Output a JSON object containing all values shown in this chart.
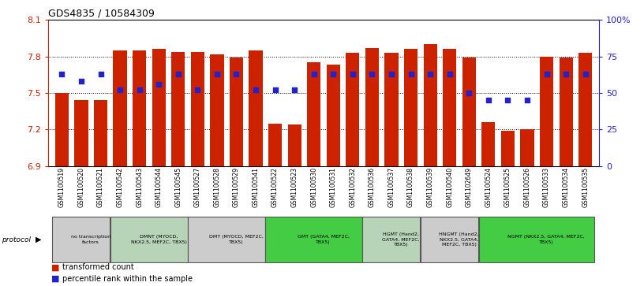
{
  "title": "GDS4835 / 10584309",
  "samples": [
    "GSM1100519",
    "GSM1100520",
    "GSM1100521",
    "GSM1100542",
    "GSM1100543",
    "GSM1100544",
    "GSM1100545",
    "GSM1100527",
    "GSM1100528",
    "GSM1100529",
    "GSM1100541",
    "GSM1100522",
    "GSM1100523",
    "GSM1100530",
    "GSM1100531",
    "GSM1100532",
    "GSM1100536",
    "GSM1100537",
    "GSM1100538",
    "GSM1100539",
    "GSM1100540",
    "GSM1102649",
    "GSM1100524",
    "GSM1100525",
    "GSM1100526",
    "GSM1100533",
    "GSM1100534",
    "GSM1100535"
  ],
  "bar_values": [
    7.5,
    7.44,
    7.44,
    7.85,
    7.85,
    7.86,
    7.84,
    7.84,
    7.82,
    7.79,
    7.85,
    7.25,
    7.24,
    7.75,
    7.73,
    7.83,
    7.87,
    7.83,
    7.86,
    7.9,
    7.86,
    7.79,
    7.26,
    7.19,
    7.2,
    7.8,
    7.79,
    7.83
  ],
  "dot_values_pct": [
    63,
    58,
    63,
    52,
    52,
    56,
    63,
    52,
    63,
    63,
    52,
    52,
    52,
    63,
    63,
    63,
    63,
    63,
    63,
    63,
    63,
    50,
    45,
    45,
    45,
    63,
    63,
    63
  ],
  "protocols": [
    {
      "label": "no transcription\nfactors",
      "color": "#cccccc",
      "start": 0,
      "end": 3
    },
    {
      "label": "DMNT (MYOCD,\nNKX2.5, MEF2C, TBX5)",
      "color": "#b8d4b8",
      "start": 3,
      "end": 7
    },
    {
      "label": "DMT (MYOCD, MEF2C,\nTBX5)",
      "color": "#cccccc",
      "start": 7,
      "end": 11
    },
    {
      "label": "GMT (GATA4, MEF2C,\nTBX5)",
      "color": "#44cc44",
      "start": 11,
      "end": 16
    },
    {
      "label": "HGMT (Hand2,\nGATA4, MEF2C,\nTBX5)",
      "color": "#b8d4b8",
      "start": 16,
      "end": 19
    },
    {
      "label": "HNGMT (Hand2,\nNKX2.5, GATA4,\nMEF2C, TBX5)",
      "color": "#cccccc",
      "start": 19,
      "end": 22
    },
    {
      "label": "NGMT (NKX2.5, GATA4, MEF2C,\nTBX5)",
      "color": "#44cc44",
      "start": 22,
      "end": 28
    }
  ],
  "bar_color": "#cc2200",
  "dot_color": "#2222cc",
  "ylim_left": [
    6.9,
    8.1
  ],
  "ylim_right": [
    0,
    100
  ],
  "yticks_left": [
    6.9,
    7.2,
    7.5,
    7.8,
    8.1
  ],
  "yticks_right": [
    0,
    25,
    50,
    75,
    100
  ],
  "bg_color": "#ffffff"
}
